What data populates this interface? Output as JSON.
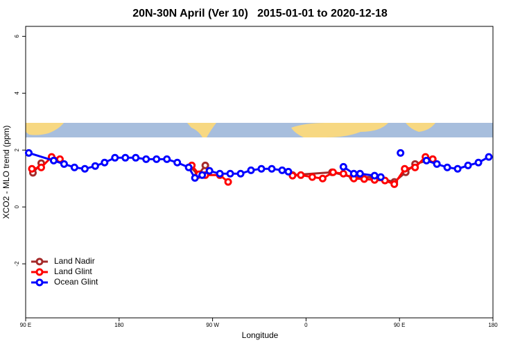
{
  "chart_data": {
    "type": "line",
    "title": "20N-30N April (Ver 10)   2015-01-01 to 2020-12-18",
    "xlabel": "Longitude",
    "ylabel": "XCO2 - MLO trend (ppm)",
    "xlim": [
      90,
      540
    ],
    "xticks": [
      {
        "value": 90,
        "label": "90 E"
      },
      180,
      {
        "value": 270,
        "label": "90 W"
      },
      {
        "value": 360,
        "label": "0"
      },
      {
        "value": 450,
        "label": "90 E"
      },
      {
        "value": 540,
        "label": "180"
      }
    ],
    "ylim": [
      -3.9,
      6.35
    ],
    "yticks": [
      6,
      4,
      2,
      0,
      -2
    ],
    "legend": "bottom-left",
    "series": [
      {
        "name": "Land Nadir",
        "color": "#a52a2a",
        "x": [
          97,
          105,
          null,
          249,
          256,
          263,
          null,
          347,
          385,
          405,
          425,
          445,
          456,
          465,
          482
        ],
        "values": [
          1.2,
          1.54,
          null,
          1.41,
          1.12,
          1.46,
          null,
          1.12,
          1.22,
          1.05,
          1.05,
          0.88,
          1.22,
          1.51,
          1.68
        ]
      },
      {
        "name": "Land Glint",
        "color": "#ff0000",
        "x": [
          96,
          105,
          115,
          123,
          null,
          250,
          257,
          263,
          277,
          285,
          null,
          347,
          355,
          366,
          376,
          386,
          396,
          406,
          416,
          426,
          436,
          445,
          455,
          465,
          475,
          482
        ],
        "values": [
          1.34,
          1.39,
          1.76,
          1.68,
          null,
          1.46,
          1.15,
          1.12,
          1.12,
          0.88,
          null,
          1.1,
          1.12,
          1.05,
          1.0,
          1.22,
          1.17,
          1.0,
          0.98,
          0.95,
          0.93,
          0.8,
          1.34,
          1.39,
          1.76,
          1.68
        ]
      },
      {
        "name": "Ocean Glint",
        "color": "#0000ff",
        "x": [
          93,
          117,
          127,
          137,
          147,
          157,
          166,
          176,
          186,
          196,
          206,
          216,
          226,
          236,
          247,
          253,
          260,
          267,
          277,
          287,
          297,
          307,
          317,
          327,
          337,
          343,
          null,
          396,
          406,
          412,
          426,
          432,
          null,
          451,
          null,
          476,
          486,
          496,
          506,
          516,
          526,
          536
        ],
        "values": [
          1.9,
          1.63,
          1.51,
          1.39,
          1.34,
          1.44,
          1.56,
          1.73,
          1.73,
          1.73,
          1.68,
          1.68,
          1.68,
          1.56,
          1.39,
          1.02,
          1.12,
          1.27,
          1.17,
          1.17,
          1.17,
          1.29,
          1.34,
          1.34,
          1.29,
          1.24,
          null,
          1.41,
          1.17,
          1.17,
          1.1,
          1.05,
          null,
          1.9,
          null,
          1.63,
          1.51,
          1.39,
          1.34,
          1.46,
          1.56,
          1.76
        ]
      }
    ]
  }
}
